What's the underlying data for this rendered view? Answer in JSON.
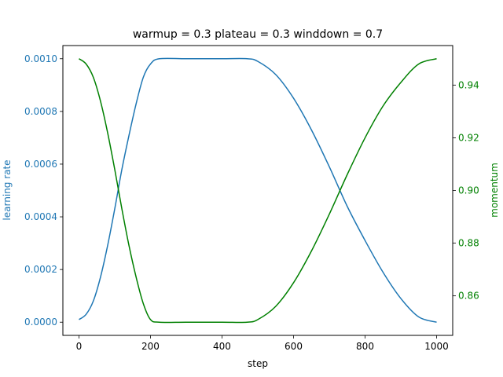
{
  "chart_data": {
    "type": "line",
    "title": "warmup = 0.3 plateau = 0.3 winddown = 0.7",
    "xlabel": "step",
    "ylabel_left": "learning rate",
    "ylabel_right": "momentum",
    "xlim": [
      -45,
      1045
    ],
    "ylim_left": [
      -5e-05,
      0.00105
    ],
    "ylim_right": [
      0.845,
      0.955
    ],
    "x_ticks": [
      0,
      200,
      400,
      600,
      800,
      1000
    ],
    "x_tick_labels": [
      "0",
      "200",
      "400",
      "600",
      "800",
      "1000"
    ],
    "y_left_ticks": [
      0.0,
      0.0002,
      0.0004,
      0.0006,
      0.0008,
      0.001
    ],
    "y_left_tick_labels": [
      "0.0000",
      "0.0002",
      "0.0004",
      "0.0006",
      "0.0008",
      "0.0010"
    ],
    "y_right_ticks": [
      0.86,
      0.88,
      0.9,
      0.92,
      0.94
    ],
    "y_right_tick_labels": [
      "0.86",
      "0.88",
      "0.90",
      "0.92",
      "0.94"
    ],
    "grid": false,
    "colors": {
      "learning_rate": "#1f77b4",
      "momentum": "#008000"
    },
    "series": [
      {
        "axis": "left",
        "x": [
          0,
          20,
          40,
          60,
          80,
          100,
          120,
          140,
          160,
          180,
          200,
          225,
          300,
          400,
          470,
          500,
          550,
          600,
          650,
          700,
          750,
          800,
          850,
          900,
          950,
          1000
        ],
        "values": [
          1e-05,
          3e-05,
          8e-05,
          0.00017,
          0.00029,
          0.00043,
          0.00058,
          0.00071,
          0.00083,
          0.00093,
          0.00098,
          0.001,
          0.001,
          0.001,
          0.001,
          0.00099,
          0.00094,
          0.00085,
          0.00073,
          0.00059,
          0.00044,
          0.00031,
          0.00019,
          9e-05,
          2e-05,
          0.0
        ]
      },
      {
        "axis": "right",
        "x": [
          0,
          20,
          40,
          60,
          80,
          100,
          120,
          140,
          160,
          180,
          200,
          225,
          300,
          400,
          470,
          500,
          550,
          600,
          650,
          700,
          750,
          800,
          850,
          900,
          950,
          1000
        ],
        "values": [
          0.95,
          0.948,
          0.943,
          0.934,
          0.922,
          0.908,
          0.893,
          0.879,
          0.867,
          0.857,
          0.851,
          0.85,
          0.85,
          0.85,
          0.85,
          0.851,
          0.856,
          0.865,
          0.877,
          0.891,
          0.906,
          0.92,
          0.932,
          0.941,
          0.948,
          0.95
        ]
      }
    ]
  }
}
